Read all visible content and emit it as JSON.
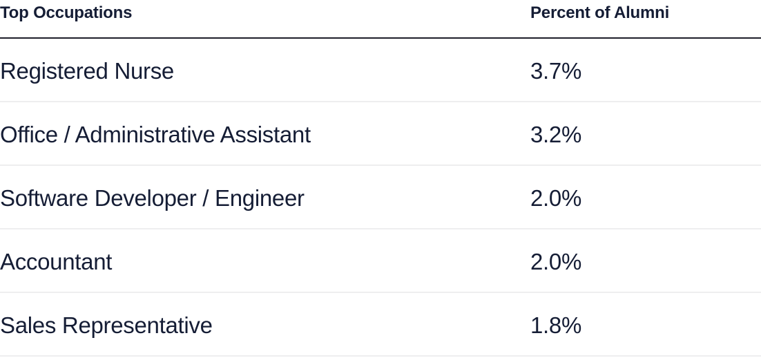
{
  "table": {
    "headers": {
      "occupation": "Top Occupations",
      "percent": "Percent of Alumni"
    },
    "rows": [
      {
        "occupation": "Registered Nurse",
        "percent": "3.7%"
      },
      {
        "occupation": "Office / Administrative Assistant",
        "percent": "3.2%"
      },
      {
        "occupation": "Software Developer / Engineer",
        "percent": "2.0%"
      },
      {
        "occupation": "Accountant",
        "percent": "2.0%"
      },
      {
        "occupation": "Sales Representative",
        "percent": "1.8%"
      }
    ]
  }
}
